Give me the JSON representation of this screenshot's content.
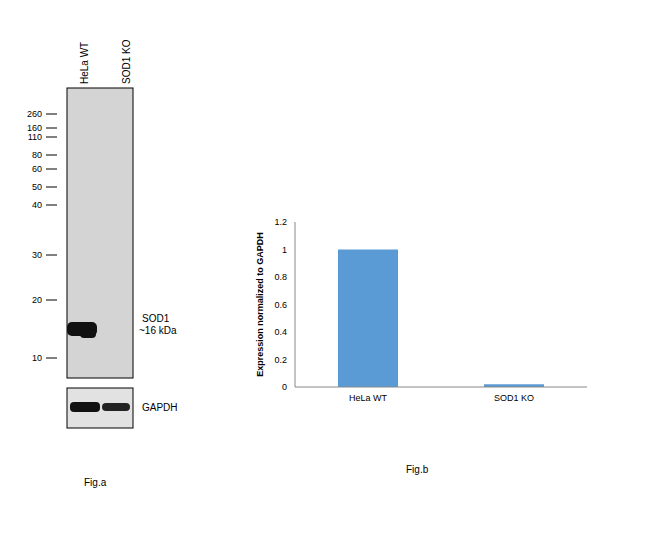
{
  "chart_data": {
    "type": "bar",
    "categories": [
      "HeLa WT",
      "SOD1 KO"
    ],
    "values": [
      1,
      0.02
    ],
    "color": "#5b9bd5",
    "ylim": [
      0,
      1.2
    ],
    "yticks": [
      0,
      0.2,
      0.4,
      0.6,
      0.8,
      1,
      1.2
    ],
    "ylabel": "Expression normalized to GAPDH",
    "caption": "Fig.b",
    "grid": false
  },
  "blot": {
    "lanes": [
      "HeLa WT",
      "SOD1 KO"
    ],
    "markers": [
      260,
      160,
      110,
      80,
      60,
      50,
      40,
      30,
      20,
      10
    ],
    "target": {
      "label": "SOD1",
      "size": "~16 kDa"
    },
    "loading_control": "GAPDH",
    "caption": "Fig.a"
  }
}
